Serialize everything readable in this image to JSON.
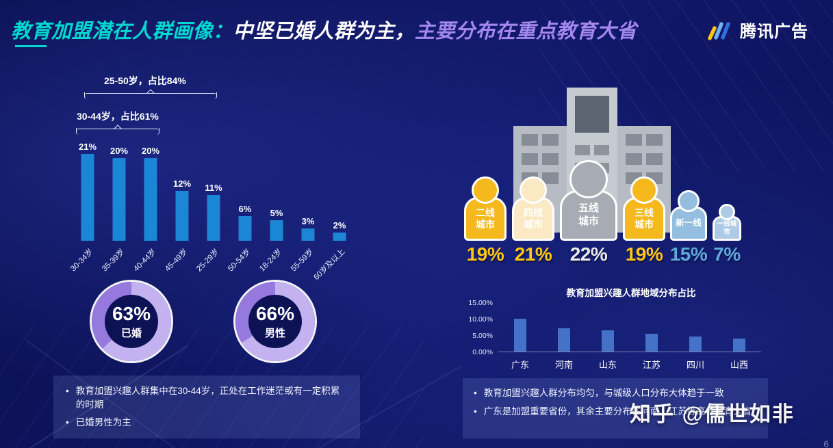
{
  "header": {
    "title_cyan": "教育加盟潜在人群画像：",
    "title_white": "中坚已婚人群为主，",
    "title_purple": "主要分布在重点教育大省",
    "brand": "腾讯广告"
  },
  "colors": {
    "background": "#0b1054",
    "title_cyan": "#00d8d0",
    "title_purple": "#a488f0",
    "age_bar_blue": "#1c86d6",
    "region_bar_blue": "#4472c9",
    "donut_purple": "#c3b2ef",
    "tier_yellow": "#f5b91e",
    "tier_cream": "#fbe9c4",
    "tier_gray": "#a7abb3",
    "tier_blue": "#93bedf",
    "pct_yellow": "#ffc613",
    "pct_blue": "#5fa8dd"
  },
  "chart_data": [
    {
      "id": "age-distribution",
      "type": "bar",
      "categories": [
        "30-34岁",
        "35-39岁",
        "40-44岁",
        "45-49岁",
        "25-29岁",
        "50-54岁",
        "18-24岁",
        "55-59岁",
        "60岁及以上"
      ],
      "values": [
        21,
        20,
        20,
        12,
        11,
        6,
        5,
        3,
        2
      ],
      "unit": "%",
      "ylim": [
        0,
        22
      ],
      "bar_color": "#1c86d6",
      "annotations": [
        {
          "text": "25-50岁，占比84%"
        },
        {
          "text": "30-44岁，占比61%"
        }
      ]
    },
    {
      "id": "married-donut",
      "type": "pie",
      "value": 63,
      "display": "63%",
      "label": "已婚",
      "main_color": "#c3b2ef",
      "rest_color": "#9579dd"
    },
    {
      "id": "male-donut",
      "type": "pie",
      "value": 66,
      "display": "66%",
      "label": "男性",
      "main_color": "#c3b2ef",
      "rest_color": "#9579dd"
    },
    {
      "id": "city-tier-distribution",
      "type": "pictogram",
      "categories": [
        "二线城市",
        "四线城市",
        "五线城市",
        "三线城市",
        "新一线",
        "一线城市"
      ],
      "values": [
        19,
        21,
        22,
        19,
        15,
        7
      ],
      "unit": "%"
    },
    {
      "id": "region-distribution",
      "type": "bar",
      "title": "教育加盟兴趣人群地域分布占比",
      "categories": [
        "广东",
        "河南",
        "山东",
        "江苏",
        "四川",
        "山西"
      ],
      "values": [
        10.0,
        7.0,
        6.5,
        5.5,
        4.5,
        4.0
      ],
      "unit": "%",
      "ylim": [
        0,
        15
      ],
      "y_ticks": [
        "15.00%",
        "10.00%",
        "5.00%",
        "0.00%"
      ],
      "bar_color": "#4472c9",
      "grid": false,
      "legend": false
    }
  ],
  "city_tiers": [
    {
      "line1": "二线",
      "line2": "城市",
      "pct": "19%",
      "fill": "#f5b91e",
      "pct_color": "#ffc613",
      "size": "m"
    },
    {
      "line1": "四线",
      "line2": "城市",
      "pct": "21%",
      "fill": "#fbe9c4",
      "pct_color": "#ffc613",
      "size": "m"
    },
    {
      "line1": "五线",
      "line2": "城市",
      "pct": "22%",
      "fill": "#a7abb3",
      "pct_color": "#e9ebef",
      "size": "l"
    },
    {
      "line1": "三线",
      "line2": "城市",
      "pct": "19%",
      "fill": "#f5b91e",
      "pct_color": "#ffc613",
      "size": "m"
    },
    {
      "line1": "新一线",
      "line2": "",
      "pct": "15%",
      "fill": "#93bedf",
      "pct_color": "#5fa8dd",
      "size": "s"
    },
    {
      "line1": "一线城市",
      "line2": "",
      "pct": "7%",
      "fill": "#aecbe6",
      "pct_color": "#5fa8dd",
      "size": "xs"
    }
  ],
  "notes_left": {
    "items": [
      "教育加盟兴趣人群集中在30-44岁，正处在工作迷茫或有一定积累的时期",
      "已婚男性为主"
    ]
  },
  "notes_right": {
    "items": [
      "教育加盟兴趣人群分布均匀，与城级人口分布大体趋于一致",
      "广东是加盟重要省份，其余主要分布在河南、江苏等高考教育大省"
    ]
  },
  "watermark": "知乎 @儒世如非",
  "page_number": "6"
}
